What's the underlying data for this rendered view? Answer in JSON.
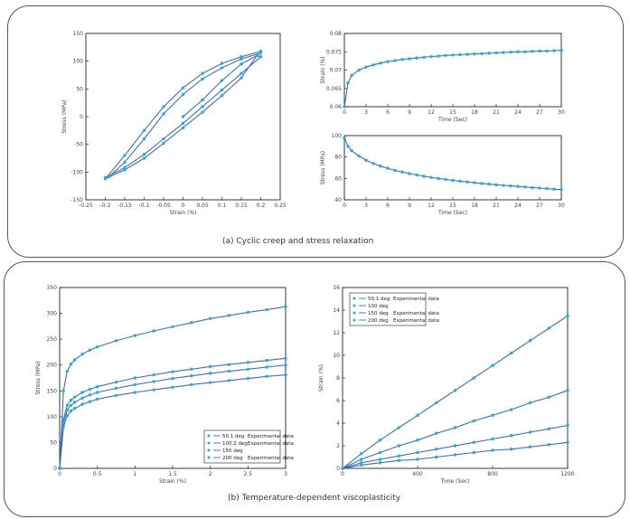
{
  "captions": {
    "a": "(a) Cyclic creep and stress relaxation",
    "b": "(b) Temperature-dependent viscoplasticity"
  },
  "chart_data": [
    {
      "id": "hysteresis",
      "type": "line",
      "xlabel": "Strain (%)",
      "ylabel": "Stress (MPa)",
      "xlim": [
        -0.25,
        0.25
      ],
      "ylim": [
        -150,
        150
      ],
      "xticks": [
        "-0.25",
        "-0.2",
        "-0.15",
        "-0.1",
        "-0.05",
        "0",
        "0.05",
        "0.1",
        "0.15",
        "0.2",
        "0.25"
      ],
      "yticks": [
        "-150",
        "-100",
        "-50",
        "0",
        "50",
        "100",
        "150"
      ],
      "series": [
        {
          "role": "model",
          "points": [
            [
              0,
              0
            ],
            [
              0.05,
              30
            ],
            [
              0.1,
              65
            ],
            [
              0.15,
              95
            ],
            [
              0.19,
              110
            ],
            [
              0.2,
              108
            ],
            [
              0.15,
              78
            ],
            [
              0.1,
              48
            ],
            [
              0.05,
              18
            ],
            [
              0,
              -12
            ],
            [
              -0.05,
              -40
            ],
            [
              -0.1,
              -68
            ],
            [
              -0.15,
              -92
            ],
            [
              -0.2,
              -110
            ],
            [
              -0.19,
              -108
            ],
            [
              -0.15,
              -82
            ],
            [
              -0.1,
              -40
            ],
            [
              -0.05,
              5
            ],
            [
              0,
              40
            ],
            [
              0.05,
              68
            ],
            [
              0.1,
              88
            ],
            [
              0.15,
              104
            ],
            [
              0.2,
              115
            ],
            [
              0.19,
              110
            ],
            [
              0.15,
              70
            ],
            [
              0.1,
              38
            ],
            [
              0.05,
              8
            ],
            [
              0,
              -20
            ],
            [
              -0.05,
              -48
            ],
            [
              -0.1,
              -75
            ],
            [
              -0.15,
              -96
            ],
            [
              -0.2,
              -112
            ],
            [
              -0.15,
              -70
            ],
            [
              -0.1,
              -25
            ],
            [
              -0.05,
              18
            ],
            [
              0,
              52
            ],
            [
              0.05,
              78
            ],
            [
              0.1,
              96
            ],
            [
              0.15,
              108
            ],
            [
              0.2,
              118
            ]
          ]
        }
      ]
    },
    {
      "id": "creep",
      "type": "line",
      "xlabel": "Time (Sec)",
      "ylabel": "Strain (%)",
      "xlim": [
        0,
        30
      ],
      "ylim": [
        0.06,
        0.08
      ],
      "xticks": [
        "0",
        "3",
        "6",
        "9",
        "12",
        "15",
        "18",
        "21",
        "24",
        "27",
        "30"
      ],
      "yticks": [
        "0.06",
        "0.065",
        "0.07",
        "0.075",
        "0.08"
      ],
      "series": [
        {
          "role": "model",
          "x": [
            0,
            0.5,
            1,
            2,
            3,
            4,
            5,
            6,
            7,
            8,
            9,
            10,
            11,
            12,
            13,
            14,
            15,
            16,
            17,
            18,
            19,
            20,
            21,
            22,
            23,
            24,
            25,
            26,
            27,
            28,
            29,
            30
          ],
          "y": [
            0.06,
            0.0665,
            0.0685,
            0.07,
            0.0708,
            0.0714,
            0.0719,
            0.0723,
            0.0726,
            0.0729,
            0.0731,
            0.0733,
            0.0735,
            0.0737,
            0.0738,
            0.074,
            0.0741,
            0.0742,
            0.0743,
            0.0744,
            0.0745,
            0.0746,
            0.0747,
            0.0748,
            0.0749,
            0.075,
            0.075,
            0.0751,
            0.0752,
            0.0752,
            0.0753,
            0.0754
          ]
        }
      ]
    },
    {
      "id": "relaxation",
      "type": "line",
      "xlabel": "Time (Sec)",
      "ylabel": "Stress (MPa)",
      "xlim": [
        0,
        30
      ],
      "ylim": [
        40,
        100
      ],
      "xticks": [
        "0",
        "3",
        "6",
        "9",
        "12",
        "15",
        "18",
        "21",
        "24",
        "27",
        "30"
      ],
      "yticks": [
        "40",
        "60",
        "80",
        "100"
      ],
      "series": [
        {
          "role": "model",
          "x": [
            0,
            0.5,
            1,
            2,
            3,
            4,
            5,
            6,
            7,
            8,
            9,
            10,
            11,
            12,
            13,
            14,
            15,
            16,
            17,
            18,
            19,
            20,
            21,
            22,
            23,
            24,
            25,
            26,
            27,
            28,
            29,
            30
          ],
          "y": [
            98,
            90,
            86,
            81,
            77,
            74,
            71.5,
            69.5,
            67.5,
            66,
            64.5,
            63.2,
            62,
            61,
            60,
            59,
            58.2,
            57.4,
            56.7,
            56,
            55.3,
            54.7,
            54.1,
            53.5,
            53,
            52.5,
            52,
            51.5,
            51,
            50.5,
            50,
            49.5
          ]
        }
      ]
    },
    {
      "id": "viscoplastic-stress",
      "type": "line",
      "xlabel": "Strain (%)",
      "ylabel": "Stress (MPa)",
      "xlim": [
        0,
        3
      ],
      "ylim": [
        0,
        350
      ],
      "xticks": [
        "0",
        "0.5",
        "1",
        "1.5",
        "2",
        "2.5",
        "3"
      ],
      "yticks": [
        "0",
        "50",
        "100",
        "150",
        "200",
        "250",
        "300",
        "350"
      ],
      "legend": {
        "position": "bottom-right",
        "entries": [
          {
            "label": "50.1 deg",
            "suffix": "Experimental data"
          },
          {
            "label": "100.2 deg",
            "suffix": "Experimental data"
          },
          {
            "label": "150 deg",
            "suffix": ""
          },
          {
            "label": "200 deg",
            "suffix": "Experimental data"
          }
        ]
      },
      "series": [
        {
          "name": "50.1 deg",
          "x": [
            0,
            0.05,
            0.1,
            0.15,
            0.2,
            0.3,
            0.4,
            0.5,
            0.75,
            1,
            1.25,
            1.5,
            1.75,
            2,
            2.25,
            2.5,
            2.75,
            3
          ],
          "y": [
            0,
            150,
            188,
            202,
            210,
            221,
            229,
            235,
            247,
            257,
            266,
            274,
            282,
            290,
            296,
            302,
            307,
            313
          ]
        },
        {
          "name": "100.2 deg",
          "x": [
            0,
            0.05,
            0.1,
            0.15,
            0.2,
            0.3,
            0.4,
            0.5,
            0.75,
            1,
            1.25,
            1.5,
            1.75,
            2,
            2.25,
            2.5,
            2.75,
            3
          ],
          "y": [
            0,
            95,
            122,
            132,
            138,
            147,
            153,
            158,
            167,
            175,
            181,
            187,
            192,
            197,
            201,
            205,
            209,
            213
          ]
        },
        {
          "name": "150 deg",
          "x": [
            0,
            0.05,
            0.1,
            0.15,
            0.2,
            0.3,
            0.4,
            0.5,
            0.75,
            1,
            1.25,
            1.5,
            1.75,
            2,
            2.25,
            2.5,
            2.75,
            3
          ],
          "y": [
            0,
            88,
            113,
            122,
            128,
            136,
            142,
            147,
            155,
            162,
            168,
            174,
            179,
            184,
            188,
            192,
            196,
            200
          ]
        },
        {
          "name": "200 deg",
          "x": [
            0,
            0.05,
            0.1,
            0.15,
            0.2,
            0.3,
            0.4,
            0.5,
            0.75,
            1,
            1.25,
            1.5,
            1.75,
            2,
            2.25,
            2.5,
            2.75,
            3
          ],
          "y": [
            0,
            80,
            102,
            111,
            116,
            124,
            129,
            134,
            141,
            147,
            152,
            157,
            162,
            166,
            170,
            174,
            178,
            181
          ]
        }
      ]
    },
    {
      "id": "viscoplastic-strain",
      "type": "line",
      "xlabel": "Time (Sec)",
      "ylabel": "Strain (%)",
      "xlim": [
        0,
        1200
      ],
      "ylim": [
        0,
        16
      ],
      "xticks": [
        "0",
        "400",
        "800",
        "1200"
      ],
      "yticks": [
        "0",
        "2",
        "4",
        "6",
        "8",
        "10",
        "12",
        "14",
        "16"
      ],
      "legend": {
        "position": "top-left",
        "entries": [
          {
            "label": "50.1 deg",
            "suffix": "Experimental data"
          },
          {
            "label": "100 deg",
            "suffix": ""
          },
          {
            "label": "150 deg",
            "suffix": "Experimental data"
          },
          {
            "label": "200 deg",
            "suffix": "Experimental data"
          }
        ]
      },
      "series": [
        {
          "name": "50.1 deg",
          "x": [
            0,
            100,
            200,
            300,
            400,
            500,
            600,
            700,
            800,
            900,
            1000,
            1100,
            1200
          ],
          "y": [
            0,
            1.3,
            2.5,
            3.6,
            4.7,
            5.8,
            6.9,
            8.0,
            9.1,
            10.2,
            11.3,
            12.4,
            13.5
          ]
        },
        {
          "name": "100 deg",
          "x": [
            0,
            100,
            200,
            300,
            400,
            500,
            600,
            700,
            800,
            900,
            1000,
            1100,
            1200
          ],
          "y": [
            0,
            0.8,
            1.4,
            2.0,
            2.5,
            3.1,
            3.6,
            4.2,
            4.7,
            5.2,
            5.8,
            6.3,
            6.9
          ]
        },
        {
          "name": "150 deg",
          "x": [
            0,
            100,
            200,
            300,
            400,
            500,
            600,
            700,
            800,
            900,
            1000,
            1100,
            1200
          ],
          "y": [
            0,
            0.5,
            0.8,
            1.1,
            1.4,
            1.7,
            2.0,
            2.3,
            2.6,
            2.9,
            3.2,
            3.5,
            3.8
          ]
        },
        {
          "name": "200 deg",
          "x": [
            0,
            100,
            200,
            300,
            400,
            500,
            600,
            700,
            800,
            900,
            1000,
            1100,
            1200
          ],
          "y": [
            0,
            0.3,
            0.5,
            0.7,
            0.8,
            1.0,
            1.2,
            1.4,
            1.6,
            1.7,
            1.9,
            2.1,
            2.3
          ]
        }
      ]
    }
  ],
  "colors": {
    "line": "#3d6fb6",
    "marker": "#2aa8e0",
    "axis": "#222222",
    "panel_border": "#555555"
  }
}
